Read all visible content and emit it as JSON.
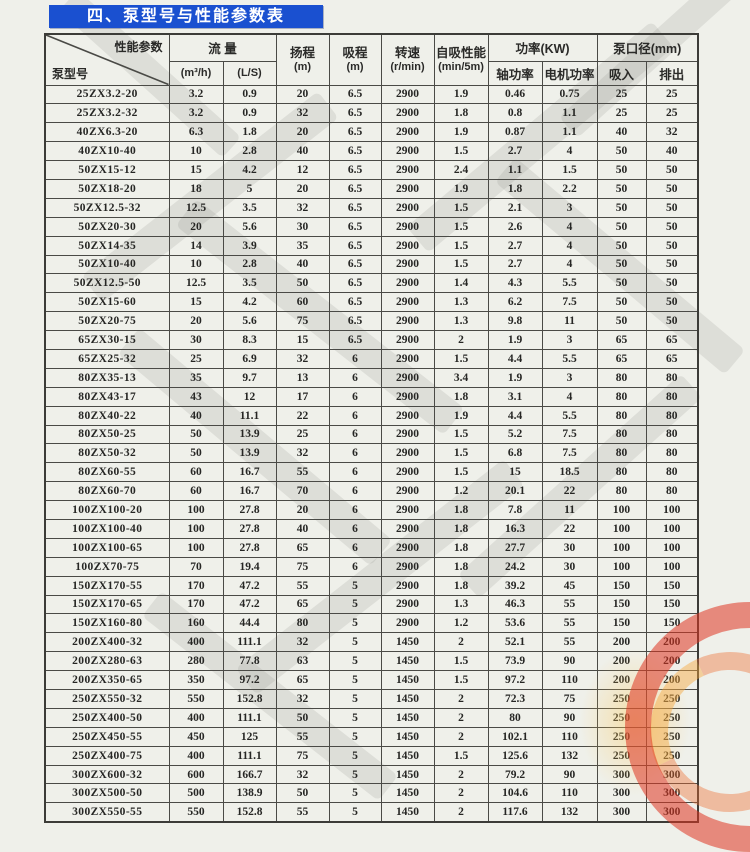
{
  "page": {
    "title": "四、泵型号与性能参数表"
  },
  "table": {
    "header": {
      "corner_top": "性能参数",
      "corner_bottom": "泵型号",
      "flow_label": "流  量",
      "flow_sub1": "(m³/h)",
      "flow_sub2": "(L/S)",
      "head_label": "扬程",
      "head_unit": "(m)",
      "suction_label": "吸程",
      "suction_unit": "(m)",
      "speed_label": "转速",
      "speed_unit": "(r/min)",
      "selfprime_label": "自吸性能",
      "selfprime_unit": "(min/5m)",
      "power_label": "功率(KW)",
      "power_sub1": "轴功率",
      "power_sub2": "电机功率",
      "port_label": "泵口径(mm)",
      "port_sub1": "吸入",
      "port_sub2": "排出"
    },
    "rows": [
      [
        "25ZX3.2-20",
        "3.2",
        "0.9",
        "20",
        "6.5",
        "2900",
        "1.9",
        "0.46",
        "0.75",
        "25",
        "25"
      ],
      [
        "25ZX3.2-32",
        "3.2",
        "0.9",
        "32",
        "6.5",
        "2900",
        "1.8",
        "0.8",
        "1.1",
        "25",
        "25"
      ],
      [
        "40ZX6.3-20",
        "6.3",
        "1.8",
        "20",
        "6.5",
        "2900",
        "1.9",
        "0.87",
        "1.1",
        "40",
        "32"
      ],
      [
        "40ZX10-40",
        "10",
        "2.8",
        "40",
        "6.5",
        "2900",
        "1.5",
        "2.7",
        "4",
        "50",
        "40"
      ],
      [
        "50ZX15-12",
        "15",
        "4.2",
        "12",
        "6.5",
        "2900",
        "2.4",
        "1.1",
        "1.5",
        "50",
        "50"
      ],
      [
        "50ZX18-20",
        "18",
        "5",
        "20",
        "6.5",
        "2900",
        "1.9",
        "1.8",
        "2.2",
        "50",
        "50"
      ],
      [
        "50ZX12.5-32",
        "12.5",
        "3.5",
        "32",
        "6.5",
        "2900",
        "1.5",
        "2.1",
        "3",
        "50",
        "50"
      ],
      [
        "50ZX20-30",
        "20",
        "5.6",
        "30",
        "6.5",
        "2900",
        "1.5",
        "2.6",
        "4",
        "50",
        "50"
      ],
      [
        "50ZX14-35",
        "14",
        "3.9",
        "35",
        "6.5",
        "2900",
        "1.5",
        "2.7",
        "4",
        "50",
        "50"
      ],
      [
        "50ZX10-40",
        "10",
        "2.8",
        "40",
        "6.5",
        "2900",
        "1.5",
        "2.7",
        "4",
        "50",
        "50"
      ],
      [
        "50ZX12.5-50",
        "12.5",
        "3.5",
        "50",
        "6.5",
        "2900",
        "1.4",
        "4.3",
        "5.5",
        "50",
        "50"
      ],
      [
        "50ZX15-60",
        "15",
        "4.2",
        "60",
        "6.5",
        "2900",
        "1.3",
        "6.2",
        "7.5",
        "50",
        "50"
      ],
      [
        "50ZX20-75",
        "20",
        "5.6",
        "75",
        "6.5",
        "2900",
        "1.3",
        "9.8",
        "11",
        "50",
        "50"
      ],
      [
        "65ZX30-15",
        "30",
        "8.3",
        "15",
        "6.5",
        "2900",
        "2",
        "1.9",
        "3",
        "65",
        "65"
      ],
      [
        "65ZX25-32",
        "25",
        "6.9",
        "32",
        "6",
        "2900",
        "1.5",
        "4.4",
        "5.5",
        "65",
        "65"
      ],
      [
        "80ZX35-13",
        "35",
        "9.7",
        "13",
        "6",
        "2900",
        "3.4",
        "1.9",
        "3",
        "80",
        "80"
      ],
      [
        "80ZX43-17",
        "43",
        "12",
        "17",
        "6",
        "2900",
        "1.8",
        "3.1",
        "4",
        "80",
        "80"
      ],
      [
        "80ZX40-22",
        "40",
        "11.1",
        "22",
        "6",
        "2900",
        "1.9",
        "4.4",
        "5.5",
        "80",
        "80"
      ],
      [
        "80ZX50-25",
        "50",
        "13.9",
        "25",
        "6",
        "2900",
        "1.5",
        "5.2",
        "7.5",
        "80",
        "80"
      ],
      [
        "80ZX50-32",
        "50",
        "13.9",
        "32",
        "6",
        "2900",
        "1.5",
        "6.8",
        "7.5",
        "80",
        "80"
      ],
      [
        "80ZX60-55",
        "60",
        "16.7",
        "55",
        "6",
        "2900",
        "1.5",
        "15",
        "18.5",
        "80",
        "80"
      ],
      [
        "80ZX60-70",
        "60",
        "16.7",
        "70",
        "6",
        "2900",
        "1.2",
        "20.1",
        "22",
        "80",
        "80"
      ],
      [
        "100ZX100-20",
        "100",
        "27.8",
        "20",
        "6",
        "2900",
        "1.8",
        "7.8",
        "11",
        "100",
        "100"
      ],
      [
        "100ZX100-40",
        "100",
        "27.8",
        "40",
        "6",
        "2900",
        "1.8",
        "16.3",
        "22",
        "100",
        "100"
      ],
      [
        "100ZX100-65",
        "100",
        "27.8",
        "65",
        "6",
        "2900",
        "1.8",
        "27.7",
        "30",
        "100",
        "100"
      ],
      [
        "100ZX70-75",
        "70",
        "19.4",
        "75",
        "6",
        "2900",
        "1.8",
        "24.2",
        "30",
        "100",
        "100"
      ],
      [
        "150ZX170-55",
        "170",
        "47.2",
        "55",
        "5",
        "2900",
        "1.8",
        "39.2",
        "45",
        "150",
        "150"
      ],
      [
        "150ZX170-65",
        "170",
        "47.2",
        "65",
        "5",
        "2900",
        "1.3",
        "46.3",
        "55",
        "150",
        "150"
      ],
      [
        "150ZX160-80",
        "160",
        "44.4",
        "80",
        "5",
        "2900",
        "1.2",
        "53.6",
        "55",
        "150",
        "150"
      ],
      [
        "200ZX400-32",
        "400",
        "111.1",
        "32",
        "5",
        "1450",
        "2",
        "52.1",
        "55",
        "200",
        "200"
      ],
      [
        "200ZX280-63",
        "280",
        "77.8",
        "63",
        "5",
        "1450",
        "1.5",
        "73.9",
        "90",
        "200",
        "200"
      ],
      [
        "200ZX350-65",
        "350",
        "97.2",
        "65",
        "5",
        "1450",
        "1.5",
        "97.2",
        "110",
        "200",
        "200"
      ],
      [
        "250ZX550-32",
        "550",
        "152.8",
        "32",
        "5",
        "1450",
        "2",
        "72.3",
        "75",
        "250",
        "250"
      ],
      [
        "250ZX400-50",
        "400",
        "111.1",
        "50",
        "5",
        "1450",
        "2",
        "80",
        "90",
        "250",
        "250"
      ],
      [
        "250ZX450-55",
        "450",
        "125",
        "55",
        "5",
        "1450",
        "2",
        "102.1",
        "110",
        "250",
        "250"
      ],
      [
        "250ZX400-75",
        "400",
        "111.1",
        "75",
        "5",
        "1450",
        "1.5",
        "125.6",
        "132",
        "250",
        "250"
      ],
      [
        "300ZX600-32",
        "600",
        "166.7",
        "32",
        "5",
        "1450",
        "2",
        "79.2",
        "90",
        "300",
        "300"
      ],
      [
        "300ZX500-50",
        "500",
        "138.9",
        "50",
        "5",
        "1450",
        "2",
        "104.6",
        "110",
        "300",
        "300"
      ],
      [
        "300ZX550-55",
        "550",
        "152.8",
        "55",
        "5",
        "1450",
        "2",
        "117.6",
        "132",
        "300",
        "300"
      ]
    ],
    "colors": {
      "banner_blue": "#1a50d0",
      "grid_line": "#4a4a46",
      "paper": "#eff0ea",
      "logo_red": "#df3420",
      "logo_orange": "#f6a63c"
    }
  }
}
